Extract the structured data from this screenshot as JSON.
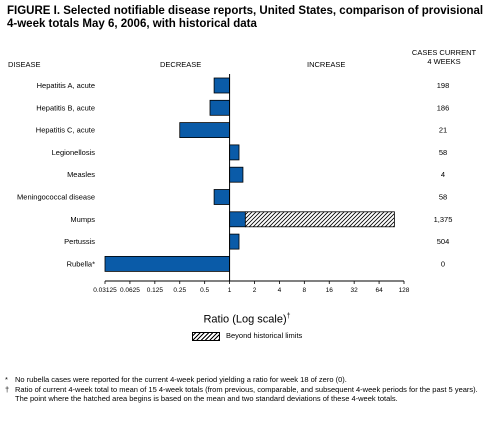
{
  "title": "FIGURE I. Selected notifiable disease reports, United States, comparison of provisional 4-week totals May 6, 2006, with historical data",
  "headers": {
    "disease": "DISEASE",
    "decrease": "DECREASE",
    "increase": "INCREASE",
    "cases_current_line1": "CASES CURRENT",
    "cases_current_line2": "4 WEEKS"
  },
  "legend": {
    "beyond_label": "Beyond historical limits"
  },
  "footnotes": [
    {
      "symbol": "*",
      "text": "No rubella cases were reported for the current 4-week period yielding a ratio for week 18 of zero (0)."
    },
    {
      "symbol": "†",
      "text": "Ratio of current 4-week total to mean of 15 4-week totals (from previous, comparable, and subsequent 4-week periods for the past 5 years). The point where the hatched area begins is based on the mean and two standard deviations of these 4-week totals."
    }
  ],
  "colors": {
    "bar_fill": "#0a5ba8",
    "bar_stroke": "#000000",
    "hatch_fill": "#ffffff",
    "hatch_line": "#000000"
  },
  "chart_data": {
    "type": "bar",
    "orientation": "horizontal",
    "xscale": "log2",
    "baseline": 1,
    "xlabel": "Ratio (Log scale)",
    "xlabel_mark": "†",
    "xlim": [
      0.03125,
      128
    ],
    "xticks": [
      0.03125,
      0.0625,
      0.125,
      0.25,
      0.5,
      1,
      2,
      4,
      8,
      16,
      32,
      64,
      128
    ],
    "xtick_labels": [
      "0.03125",
      "0.0625",
      "0.125",
      "0.25",
      "0.5",
      "1",
      "2",
      "4",
      "8",
      "16",
      "32",
      "64",
      "128"
    ],
    "categories": [
      "Hepatitis A, acute",
      "Hepatitis B, acute",
      "Hepatitis C, acute",
      "Legionellosis",
      "Measles",
      "Meningococcal disease",
      "Mumps",
      "Pertussis",
      "Rubella*"
    ],
    "values": [
      0.65,
      0.58,
      0.25,
      1.3,
      1.45,
      0.65,
      98,
      1.3,
      0.03125
    ],
    "beyond_limits_start": [
      null,
      null,
      null,
      null,
      null,
      null,
      1.55,
      null,
      null
    ],
    "cases_current_4_weeks": [
      "198",
      "186",
      "21",
      "58",
      "4",
      "58",
      "1,375",
      "504",
      "0"
    ],
    "legend": {
      "placement": "bottom-center",
      "entries": [
        "Beyond historical limits"
      ]
    },
    "grid": false
  }
}
